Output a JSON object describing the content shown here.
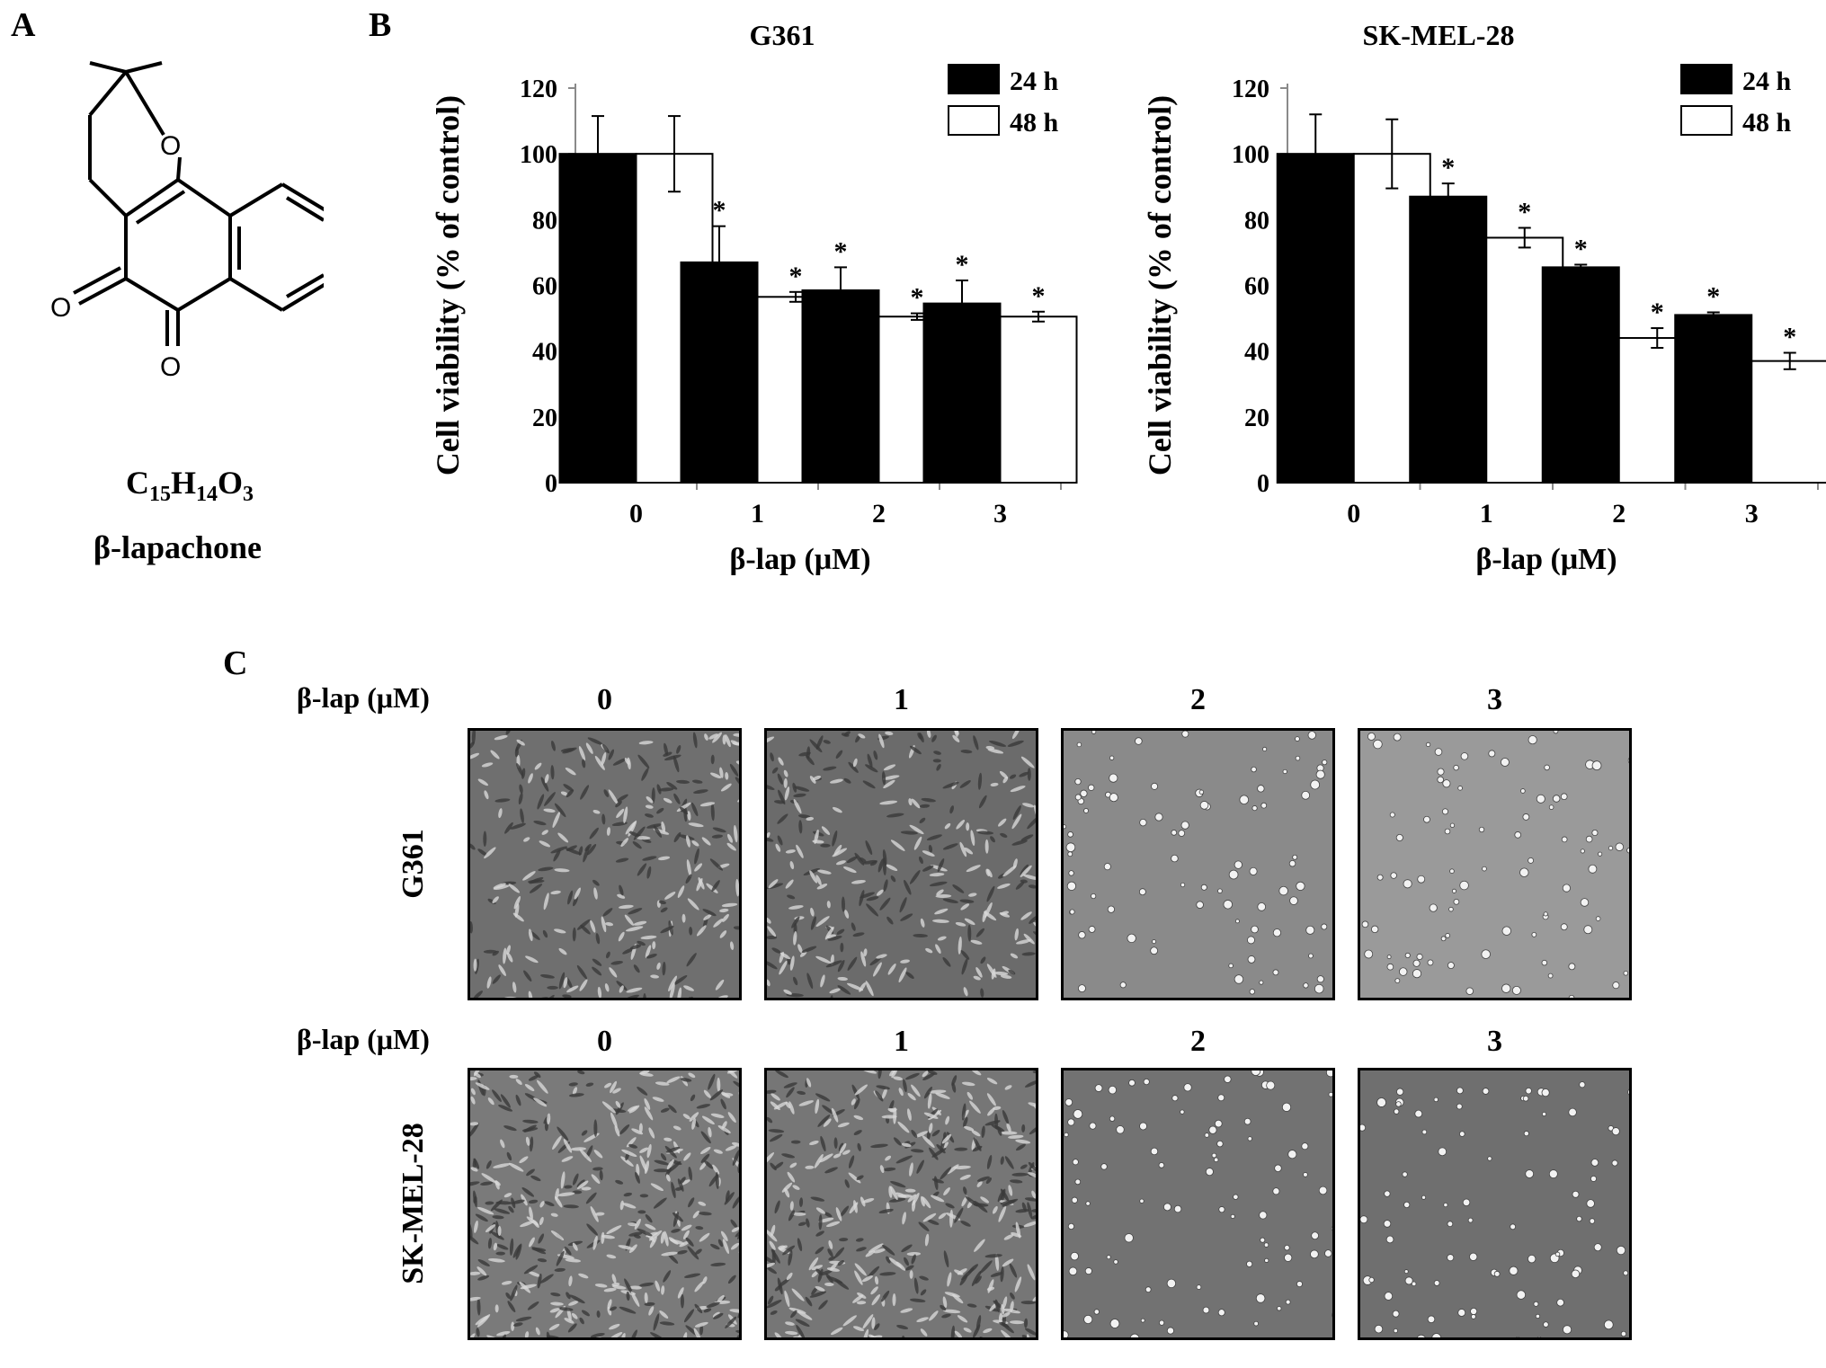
{
  "panels": {
    "a": "A",
    "b": "B",
    "c": "C"
  },
  "compound": {
    "formula_parts": {
      "c": "C",
      "c_n": "15",
      "h": "H",
      "h_n": "14",
      "o": "O",
      "o_n": "3"
    },
    "name": "β-lapachone",
    "atom_o": "O"
  },
  "chart_data": [
    {
      "type": "bar",
      "title": "G361",
      "xlabel": "β-lap (μM)",
      "ylabel": "Cell viability (% of control)",
      "categories": [
        "0",
        "1",
        "2",
        "3"
      ],
      "ylim": [
        0,
        120
      ],
      "yticks": [
        "0",
        "20",
        "40",
        "60",
        "80",
        "100",
        "120"
      ],
      "legend_position": "top-right",
      "series": [
        {
          "name": "24 h",
          "color": "#000000",
          "values": [
            100,
            67,
            58.5,
            54.5
          ],
          "errors": [
            11.5,
            11,
            7,
            7
          ],
          "significant": [
            false,
            true,
            true,
            true
          ]
        },
        {
          "name": "48 h",
          "color": "#ffffff",
          "values": [
            100,
            56.5,
            50.5,
            50.5
          ],
          "errors": [
            11.5,
            1.5,
            1,
            1.5
          ],
          "significant": [
            false,
            true,
            true,
            true
          ]
        }
      ],
      "significance_marker": "*"
    },
    {
      "type": "bar",
      "title": "SK-MEL-28",
      "xlabel": "β-lap (μM)",
      "ylabel": "Cell viability (% of control)",
      "categories": [
        "0",
        "1",
        "2",
        "3"
      ],
      "ylim": [
        0,
        120
      ],
      "yticks": [
        "0",
        "20",
        "40",
        "60",
        "80",
        "100",
        "120"
      ],
      "legend_position": "top-right",
      "series": [
        {
          "name": "24 h",
          "color": "#000000",
          "values": [
            100,
            87,
            65.5,
            51
          ],
          "errors": [
            12,
            4,
            0.8,
            0.8
          ],
          "significant": [
            false,
            true,
            true,
            true
          ]
        },
        {
          "name": "48 h",
          "color": "#ffffff",
          "values": [
            100,
            74.5,
            44,
            37
          ],
          "errors": [
            10.5,
            3,
            3,
            2.5
          ],
          "significant": [
            false,
            true,
            true,
            true
          ]
        }
      ],
      "significance_marker": "*"
    }
  ],
  "micrographs": {
    "dose_label": "β-lap (μM)",
    "doses": [
      "0",
      "1",
      "2",
      "3"
    ],
    "rows": [
      {
        "cell_line": "G361",
        "tones": [
          "#6f6f6f",
          "#6b6b6b",
          "#8a8a8a",
          "#9a9a9a"
        ]
      },
      {
        "cell_line": "SK-MEL-28",
        "tones": [
          "#7a7a7a",
          "#767676",
          "#727272",
          "#6f6f6f"
        ]
      }
    ]
  }
}
